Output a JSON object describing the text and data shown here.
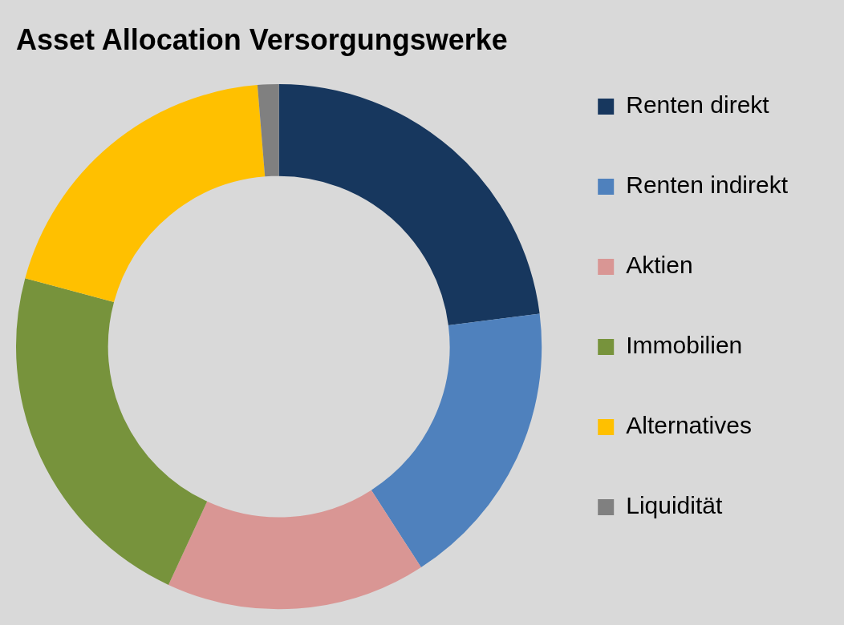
{
  "chart_data": {
    "type": "donut",
    "title": "Asset Allocation Versorgungswerke",
    "categories": [
      "Renten direkt",
      "Renten indirekt",
      "Aktien",
      "Immobilien",
      "Alternatives",
      "Liquidität"
    ],
    "values": [
      23.0,
      17.9,
      16.0,
      22.3,
      19.5,
      1.3
    ],
    "colors": [
      "#17375e",
      "#4f81bd",
      "#d99694",
      "#77933c",
      "#ffc000",
      "#808080"
    ],
    "legend": "right"
  }
}
